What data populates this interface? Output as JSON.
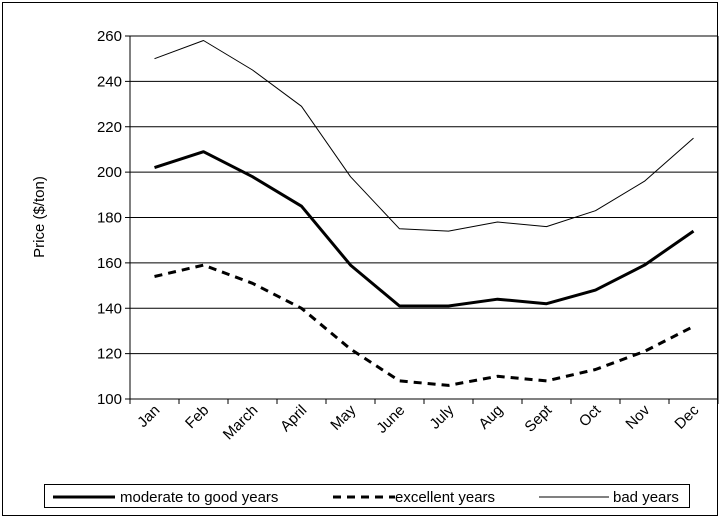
{
  "chart_data": {
    "type": "line",
    "categories": [
      "Jan",
      "Feb",
      "March",
      "April",
      "May",
      "June",
      "July",
      "Aug",
      "Sept",
      "Oct",
      "Nov",
      "Dec"
    ],
    "series": [
      {
        "name": "moderate to good years",
        "style": "thick-solid",
        "color": "#000000",
        "values": [
          202,
          209,
          198,
          185,
          159,
          141,
          141,
          144,
          142,
          148,
          159,
          174
        ]
      },
      {
        "name": "excellent years",
        "style": "dashed",
        "color": "#000000",
        "values": [
          154,
          159,
          151,
          140,
          122,
          108,
          106,
          110,
          108,
          113,
          121,
          132
        ]
      },
      {
        "name": "bad years",
        "style": "thin-solid",
        "color": "#000000",
        "values": [
          250,
          258,
          245,
          229,
          198,
          175,
          174,
          178,
          176,
          183,
          196,
          215
        ]
      }
    ],
    "ylabel": "Price ($/ton)",
    "ylim": [
      100,
      260
    ],
    "yticks": [
      100,
      120,
      140,
      160,
      180,
      200,
      220,
      240,
      260
    ],
    "grid": true,
    "legend_placement": "bottom"
  }
}
